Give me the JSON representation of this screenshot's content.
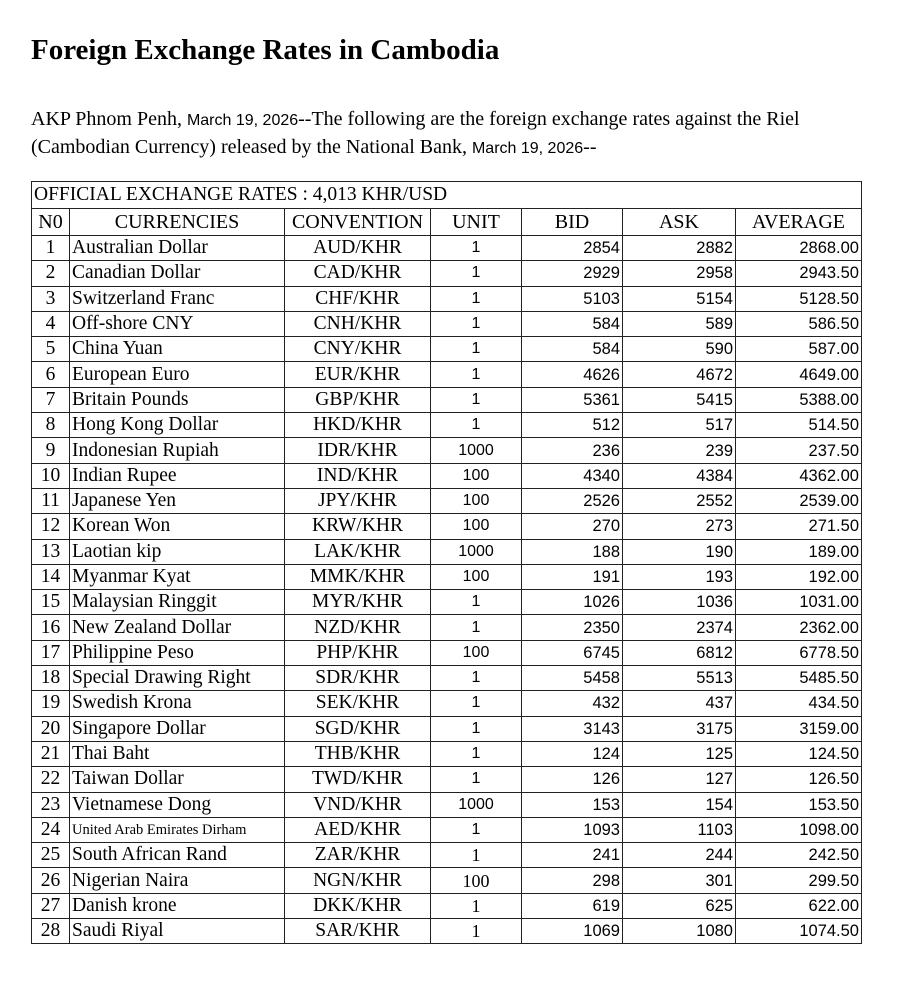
{
  "title": "Foreign Exchange Rates in Cambodia",
  "intro": {
    "prefix": "AKP Phnom Penh, ",
    "date1": "March 19, 2026",
    "middle": "--The following are the foreign exchange rates against the Riel (Cambodian Currency) released by the National Bank, ",
    "date2": "March 19, 2026",
    "suffix": "--"
  },
  "table": {
    "official_label": "OFFICIAL EXCHANGE RATES :   4,013 KHR/USD",
    "headers": {
      "no": "N0",
      "currencies": "CURRENCIES",
      "convention": "CONVENTION",
      "unit": "UNIT",
      "bid": "BID",
      "ask": "ASK",
      "average": "AVERAGE"
    },
    "rows": [
      {
        "no": "1",
        "name": "Australian Dollar",
        "conv": "AUD/KHR",
        "unit": "1",
        "bid": "2854",
        "ask": "2882",
        "avg": "2868.00"
      },
      {
        "no": "2",
        "name": "Canadian Dollar",
        "conv": "CAD/KHR",
        "unit": "1",
        "bid": "2929",
        "ask": "2958",
        "avg": "2943.50"
      },
      {
        "no": "3",
        "name": "Switzerland Franc",
        "conv": "CHF/KHR",
        "unit": "1",
        "bid": "5103",
        "ask": "5154",
        "avg": "5128.50"
      },
      {
        "no": "4",
        "name": "Off-shore CNY",
        "conv": "CNH/KHR",
        "unit": "1",
        "bid": "584",
        "ask": "589",
        "avg": "586.50"
      },
      {
        "no": "5",
        "name": "China Yuan",
        "conv": "CNY/KHR",
        "unit": "1",
        "bid": "584",
        "ask": "590",
        "avg": "587.00"
      },
      {
        "no": "6",
        "name": "European Euro",
        "conv": "EUR/KHR",
        "unit": "1",
        "bid": "4626",
        "ask": "4672",
        "avg": "4649.00"
      },
      {
        "no": "7",
        "name": "Britain Pounds",
        "conv": "GBP/KHR",
        "unit": "1",
        "bid": "5361",
        "ask": "5415",
        "avg": "5388.00"
      },
      {
        "no": "8",
        "name": "Hong Kong Dollar",
        "conv": "HKD/KHR",
        "unit": "1",
        "bid": "512",
        "ask": "517",
        "avg": "514.50"
      },
      {
        "no": "9",
        "name": "Indonesian Rupiah",
        "conv": "IDR/KHR",
        "unit": "1000",
        "bid": "236",
        "ask": "239",
        "avg": "237.50"
      },
      {
        "no": "10",
        "name": "Indian Rupee",
        "conv": "IND/KHR",
        "unit": "100",
        "bid": "4340",
        "ask": "4384",
        "avg": "4362.00"
      },
      {
        "no": "11",
        "name": "Japanese Yen",
        "conv": "JPY/KHR",
        "unit": "100",
        "bid": "2526",
        "ask": "2552",
        "avg": "2539.00"
      },
      {
        "no": "12",
        "name": "Korean Won",
        "conv": "KRW/KHR",
        "unit": "100",
        "bid": "270",
        "ask": "273",
        "avg": "271.50"
      },
      {
        "no": "13",
        "name": "Laotian kip",
        "conv": "LAK/KHR",
        "unit": "1000",
        "bid": "188",
        "ask": "190",
        "avg": "189.00"
      },
      {
        "no": "14",
        "name": "Myanmar Kyat",
        "conv": "MMK/KHR",
        "unit": "100",
        "bid": "191",
        "ask": "193",
        "avg": "192.00"
      },
      {
        "no": "15",
        "name": "Malaysian Ringgit",
        "conv": "MYR/KHR",
        "unit": "1",
        "bid": "1026",
        "ask": "1036",
        "avg": "1031.00"
      },
      {
        "no": "16",
        "name": "New Zealand Dollar",
        "conv": "NZD/KHR",
        "unit": "1",
        "bid": "2350",
        "ask": "2374",
        "avg": "2362.00"
      },
      {
        "no": "17",
        "name": "Philippine Peso",
        "conv": "PHP/KHR",
        "unit": "100",
        "bid": "6745",
        "ask": "6812",
        "avg": "6778.50"
      },
      {
        "no": "18",
        "name": "Special Drawing Right",
        "conv": "SDR/KHR",
        "unit": "1",
        "bid": "5458",
        "ask": "5513",
        "avg": "5485.50"
      },
      {
        "no": "19",
        "name": "Swedish Krona",
        "conv": "SEK/KHR",
        "unit": "1",
        "bid": "432",
        "ask": "437",
        "avg": "434.50"
      },
      {
        "no": "20",
        "name": "Singapore Dollar",
        "conv": "SGD/KHR",
        "unit": "1",
        "bid": "3143",
        "ask": "3175",
        "avg": "3159.00"
      },
      {
        "no": "21",
        "name": "Thai Baht",
        "conv": "THB/KHR",
        "unit": "1",
        "bid": "124",
        "ask": "125",
        "avg": "124.50"
      },
      {
        "no": "22",
        "name": "Taiwan Dollar",
        "conv": "TWD/KHR",
        "unit": "1",
        "bid": "126",
        "ask": "127",
        "avg": "126.50"
      },
      {
        "no": "23",
        "name": "Vietnamese Dong",
        "conv": "VND/KHR",
        "unit": "1000",
        "bid": "153",
        "ask": "154",
        "avg": "153.50"
      },
      {
        "no": "24",
        "name": "United Arab Emirates Dirham",
        "conv": "AED/KHR",
        "unit": "1",
        "bid": "1093",
        "ask": "1103",
        "avg": "1098.00"
      },
      {
        "no": "25",
        "name": "South African Rand",
        "conv": "ZAR/KHR",
        "unit": "1",
        "bid": "241",
        "ask": "244",
        "avg": "242.50"
      },
      {
        "no": "26",
        "name": "Nigerian Naira",
        "conv": "NGN/KHR",
        "unit": "100",
        "bid": "298",
        "ask": "301",
        "avg": "299.50"
      },
      {
        "no": "27",
        "name": "Danish krone",
        "conv": "DKK/KHR",
        "unit": "1",
        "bid": "619",
        "ask": "625",
        "avg": "622.00"
      },
      {
        "no": "28",
        "name": "Saudi Riyal",
        "conv": "SAR/KHR",
        "unit": "1",
        "bid": "1069",
        "ask": "1080",
        "avg": "1074.50"
      }
    ]
  }
}
